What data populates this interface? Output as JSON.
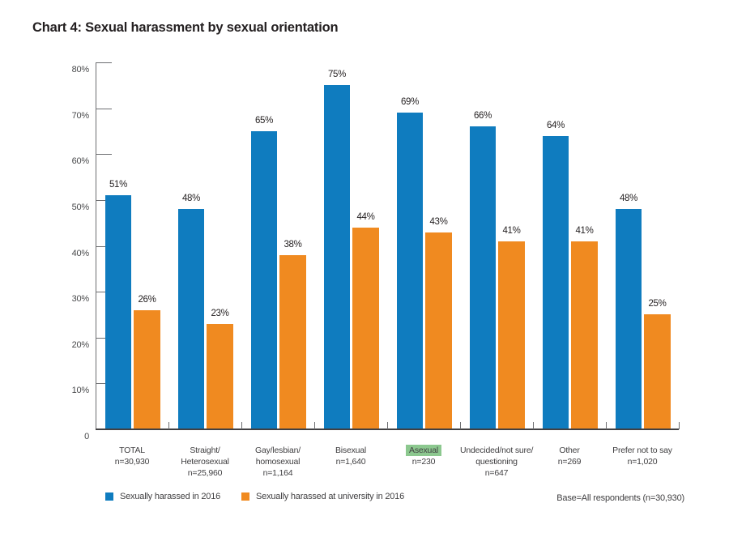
{
  "chart_data": {
    "type": "bar",
    "title": "Chart 4: Sexual harassment by sexual orientation",
    "ylabel": "",
    "xlabel": "",
    "ylim": [
      0,
      80
    ],
    "ytick_step": 10,
    "ytick_suffix": "%",
    "y_zero_label": "0",
    "grid": false,
    "legend_position": "bottom-left",
    "categories": [
      {
        "lines": [
          "TOTAL"
        ],
        "n": "n=30,930",
        "highlight": false
      },
      {
        "lines": [
          "Straight/",
          "Heterosexual"
        ],
        "n": "n=25,960",
        "highlight": false
      },
      {
        "lines": [
          "Gay/lesbian/",
          "homosexual"
        ],
        "n": "n=1,164",
        "highlight": false
      },
      {
        "lines": [
          "Bisexual"
        ],
        "n": "n=1,640",
        "highlight": false
      },
      {
        "lines": [
          "Asexual"
        ],
        "n": "n=230",
        "highlight": true
      },
      {
        "lines": [
          "Undecided/not sure/",
          "questioning"
        ],
        "n": "n=647",
        "highlight": false
      },
      {
        "lines": [
          "Other"
        ],
        "n": "n=269",
        "highlight": false
      },
      {
        "lines": [
          "Prefer not to say"
        ],
        "n": "n=1,020",
        "highlight": false
      }
    ],
    "series": [
      {
        "name": "Sexually harassed in 2016",
        "color": "#0f7cbf",
        "values": [
          51,
          48,
          65,
          75,
          69,
          66,
          64,
          48
        ]
      },
      {
        "name": "Sexually harassed at university in 2016",
        "color": "#f08a20",
        "values": [
          26,
          23,
          38,
          44,
          43,
          41,
          41,
          25
        ]
      }
    ],
    "value_label_suffix": "%",
    "base_note": "Base=All respondents (n=30,930)",
    "colors": {
      "highlight_green": "#8cc88f",
      "axis_gray": "#6d6e71",
      "baseline_dark": "#414042",
      "text_dark": "#231f20",
      "label_gray": "#414042"
    }
  }
}
